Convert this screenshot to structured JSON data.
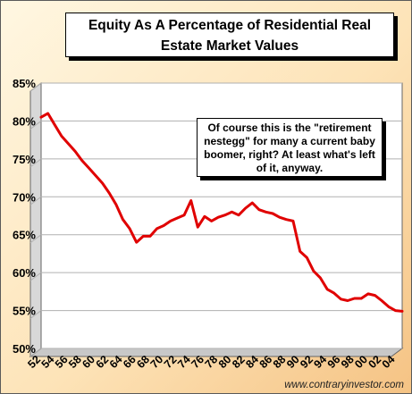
{
  "title": "Equity As A Percentage of Residential Real Estate Market Values",
  "annotation": "Of course this is the \"retirement nestegg\" for many a current baby boomer, right?  At least what's left of it, anyway.",
  "source": "www.contraryinvestor.com",
  "colors": {
    "line": "#e00000",
    "plot_bg": "#ffffff",
    "frame_bg": "#fde3b7"
  },
  "chart_data": {
    "type": "line",
    "title": "Equity As A Percentage of Residential Real Estate Market Values",
    "xlabel": "",
    "ylabel": "",
    "ylim": [
      50,
      85
    ],
    "x_ticks": [
      "52",
      "54",
      "56",
      "58",
      "60",
      "62",
      "64",
      "66",
      "68",
      "70",
      "72",
      "74",
      "76",
      "78",
      "80",
      "82",
      "84",
      "86",
      "88",
      "90",
      "92",
      "94",
      "96",
      "98",
      "00",
      "02",
      "04"
    ],
    "y_ticks": [
      "50%",
      "55%",
      "60%",
      "65%",
      "70%",
      "75%",
      "80%",
      "85%"
    ],
    "grid": "horizontal",
    "legend": "none",
    "series": [
      {
        "name": "",
        "x": [
          1952,
          1953,
          1954,
          1955,
          1956,
          1957,
          1958,
          1959,
          1960,
          1961,
          1962,
          1963,
          1964,
          1965,
          1966,
          1967,
          1968,
          1969,
          1970,
          1971,
          1972,
          1973,
          1974,
          1975,
          1976,
          1977,
          1978,
          1979,
          1980,
          1981,
          1982,
          1983,
          1984,
          1985,
          1986,
          1987,
          1988,
          1989,
          1990,
          1991,
          1992,
          1993,
          1994,
          1995,
          1996,
          1997,
          1998,
          1999,
          2000,
          2001,
          2002,
          2003,
          2004,
          2005
        ],
        "y": [
          80.5,
          81.0,
          79.5,
          78.0,
          77.0,
          76.0,
          74.8,
          73.8,
          72.8,
          71.8,
          70.5,
          69.0,
          67.0,
          65.8,
          64.0,
          64.8,
          64.8,
          65.8,
          66.2,
          66.8,
          67.2,
          67.6,
          69.5,
          66.0,
          67.4,
          66.8,
          67.3,
          67.6,
          68.0,
          67.6,
          68.5,
          69.2,
          68.3,
          68.0,
          67.8,
          67.3,
          67.0,
          66.8,
          62.8,
          62.0,
          60.2,
          59.3,
          57.8,
          57.3,
          56.5,
          56.3,
          56.6,
          56.6,
          57.2,
          57.0,
          56.3,
          55.5,
          55.0,
          54.9
        ]
      }
    ]
  }
}
